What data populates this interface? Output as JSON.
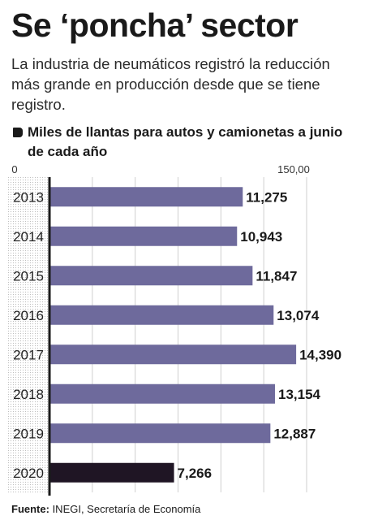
{
  "header": {
    "title": "Se ‘poncha’ sector",
    "subtitle": "La industria de neumáticos registró la reducción más grande en producción desde que se tiene registro."
  },
  "legend": {
    "label": "Miles de llantas para autos y camionetas a junio de cada año"
  },
  "footer": {
    "source_label": "Fuente:",
    "source_text": " INEGI, Secretaría de Economía"
  },
  "chart_data": {
    "type": "bar",
    "orientation": "horizontal",
    "categories": [
      "2013",
      "2014",
      "2015",
      "2016",
      "2017",
      "2018",
      "2019",
      "2020"
    ],
    "values": [
      11275,
      10943,
      11847,
      13074,
      14390,
      13154,
      12887,
      7266
    ],
    "value_labels": [
      "11,275",
      "10,943",
      "11,847",
      "13,074",
      "14,390",
      "13,154",
      "12,887",
      "7,266"
    ],
    "tick_labels": [
      "0",
      "150,00"
    ],
    "xlim": [
      0,
      15000
    ],
    "grid": true,
    "colors": {
      "bar": "#6e6a9c",
      "highlight_bar": "#1f1524",
      "axis": "#1a1a1a",
      "grid": "#cfcfcf"
    },
    "highlight_category": "2020"
  }
}
